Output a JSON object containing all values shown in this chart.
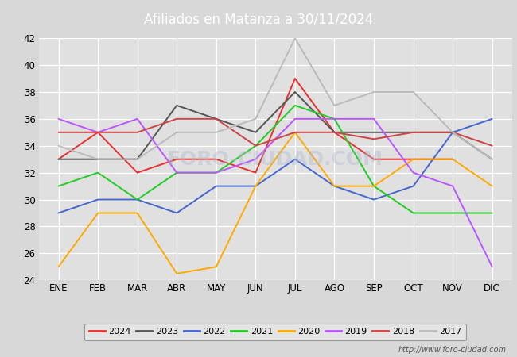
{
  "title": "Afiliados en Matanza a 30/11/2024",
  "title_color": "#ffffff",
  "header_bg": "#5b7fbf",
  "months": [
    "ENE",
    "FEB",
    "MAR",
    "ABR",
    "MAY",
    "JUN",
    "JUL",
    "AGO",
    "SEP",
    "OCT",
    "NOV",
    "DIC"
  ],
  "series": {
    "2024": {
      "color": "#e83030",
      "data": [
        33,
        35,
        32,
        33,
        33,
        32,
        39,
        35,
        33,
        33,
        33,
        null
      ]
    },
    "2023": {
      "color": "#555555",
      "data": [
        33,
        33,
        33,
        37,
        36,
        35,
        38,
        35,
        35,
        35,
        35,
        33
      ]
    },
    "2022": {
      "color": "#4466cc",
      "data": [
        29,
        30,
        30,
        29,
        31,
        31,
        33,
        31,
        30,
        31,
        35,
        36
      ]
    },
    "2021": {
      "color": "#22cc22",
      "data": [
        31,
        32,
        30,
        32,
        32,
        34,
        37,
        36,
        31,
        29,
        29,
        29
      ]
    },
    "2020": {
      "color": "#ffaa00",
      "data": [
        25,
        29,
        29,
        24.5,
        25,
        31,
        35,
        31,
        31,
        33,
        33,
        31
      ]
    },
    "2019": {
      "color": "#bb55ff",
      "data": [
        36,
        35,
        36,
        32,
        32,
        33,
        36,
        36,
        36,
        32,
        31,
        25
      ]
    },
    "2018": {
      "color": "#cc4444",
      "data": [
        35,
        35,
        35,
        36,
        36,
        34,
        35,
        35,
        34.5,
        35,
        35,
        34
      ]
    },
    "2017": {
      "color": "#bbbbbb",
      "data": [
        34,
        33,
        33,
        35,
        35,
        36,
        42,
        37,
        38,
        38,
        35,
        33
      ]
    }
  },
  "ylim": [
    24,
    42
  ],
  "yticks": [
    24,
    26,
    28,
    30,
    32,
    34,
    36,
    38,
    40,
    42
  ],
  "bg_color": "#d8d8d8",
  "plot_bg": "#e0e0e0",
  "grid_color": "#ffffff",
  "footer_url": "http://www.foro-ciudad.com",
  "legend_years": [
    "2024",
    "2023",
    "2022",
    "2021",
    "2020",
    "2019",
    "2018",
    "2017"
  ]
}
